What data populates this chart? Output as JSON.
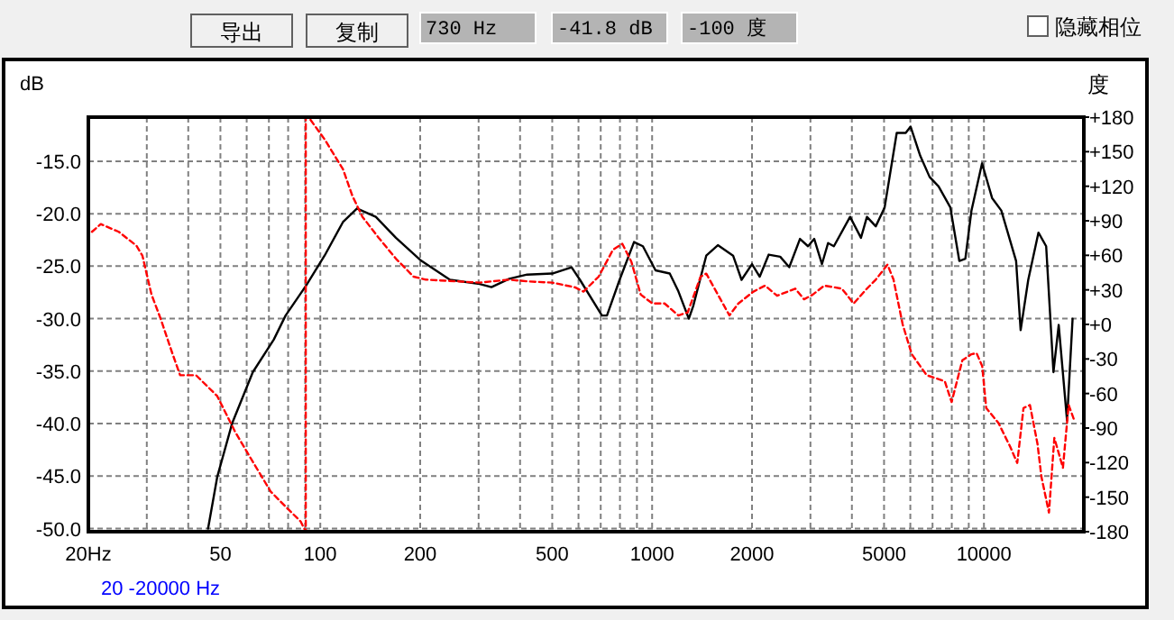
{
  "chart_data": {
    "type": "line",
    "ylabel": "dB",
    "y2label": "度",
    "annotations": [
      "导出",
      "复制",
      "730 Hz",
      "-41.8 dB",
      "-100 度",
      "隐藏相位",
      "20 -20000 Hz"
    ],
    "log": "x",
    "grid": true,
    "xlim": [
      20,
      20000
    ],
    "xticks": [
      {
        "value": 20,
        "label": "20Hz"
      },
      {
        "value": 30,
        "label": null
      },
      {
        "value": 40,
        "label": null
      },
      50,
      {
        "value": 60,
        "label": null
      },
      {
        "value": 70,
        "label": null
      },
      {
        "value": 80,
        "label": null
      },
      {
        "value": 90,
        "label": null
      },
      100,
      200,
      {
        "value": 300,
        "label": null
      },
      {
        "value": 400,
        "label": null
      },
      500,
      {
        "value": 600,
        "label": null
      },
      {
        "value": 700,
        "label": null
      },
      {
        "value": 800,
        "label": null
      },
      {
        "value": 900,
        "label": null
      },
      1000,
      2000,
      {
        "value": 3000,
        "label": null
      },
      {
        "value": 4000,
        "label": null
      },
      5000,
      {
        "value": 6000,
        "label": null
      },
      {
        "value": 7000,
        "label": null
      },
      {
        "value": 8000,
        "label": null
      },
      {
        "value": 9000,
        "label": null
      },
      10000
    ],
    "ylim": [
      -50.3,
      -10.8
    ],
    "yticks": [
      {
        "value": -15,
        "label": "-15.0"
      },
      {
        "value": -20,
        "label": "-20.0"
      },
      {
        "value": -25,
        "label": "-25.0"
      },
      {
        "value": -30,
        "label": "-30.0"
      },
      {
        "value": -35,
        "label": "-35.0"
      },
      {
        "value": -40,
        "label": "-40.0"
      },
      {
        "value": -45,
        "label": "-45.0"
      },
      {
        "value": -50,
        "label": "-50.0"
      }
    ],
    "y2lim": [
      -180,
      180
    ],
    "y2ticks": [
      {
        "value": 180,
        "label": "+180"
      },
      {
        "value": 150,
        "label": "+150"
      },
      {
        "value": 120,
        "label": "+120"
      },
      {
        "value": 90,
        "label": "+90"
      },
      {
        "value": 60,
        "label": "+60"
      },
      {
        "value": 30,
        "label": "+30"
      },
      {
        "value": 0,
        "label": "+0"
      },
      -30,
      -60,
      -90,
      -120,
      -150,
      -180
    ],
    "series": [
      {
        "color": "#000000",
        "line_style": "solid",
        "x": [
          45.9,
          48.9,
          54.2,
          62.6,
          72.4,
          78.6,
          90.8,
          103,
          117,
          129,
          147,
          169,
          200,
          246,
          302,
          328,
          371,
          420,
          500,
          572,
          606,
          706,
          731,
          798,
          882,
          938,
          1024,
          1130,
          1200,
          1290,
          1330,
          1456,
          1578,
          1754,
          1860,
          2000,
          2110,
          2246,
          2432,
          2590,
          2790,
          2950,
          3080,
          3250,
          3390,
          3530,
          3950,
          4260,
          4440,
          4720,
          5020,
          5460,
          5810,
          6010,
          6430,
          6860,
          7300,
          7920,
          8430,
          8790,
          9170,
          9870,
          10580,
          11280,
          12500,
          12900,
          13600,
          14600,
          15400,
          16200,
          16800,
          17800,
          18500
        ],
        "values": [
          -50,
          -45.1,
          -40,
          -35.1,
          -32,
          -29.7,
          -26.8,
          -24,
          -20.8,
          -19.5,
          -20.3,
          -22.3,
          -24.4,
          -26.3,
          -26.7,
          -27,
          -26.2,
          -25.8,
          -25.7,
          -25.1,
          -26.3,
          -29.7,
          -29.7,
          -26.3,
          -22.7,
          -23.1,
          -25.4,
          -25.7,
          -27.4,
          -30,
          -28.8,
          -24,
          -23,
          -24,
          -26.3,
          -24.8,
          -26,
          -23.9,
          -24.1,
          -25.1,
          -22.4,
          -23.1,
          -22.4,
          -24.8,
          -22.8,
          -23.1,
          -20.3,
          -22.3,
          -20.3,
          -21.2,
          -19.4,
          -12.3,
          -12.3,
          -11.7,
          -14.5,
          -16.5,
          -17.4,
          -19.4,
          -24.5,
          -24.3,
          -19.7,
          -15.2,
          -18.5,
          -19.7,
          -24.5,
          -31.1,
          -26.3,
          -21.8,
          -23.1,
          -35.1,
          -30.6,
          -39.7,
          -30
        ]
      },
      {
        "color": "#ff0000",
        "line_style": "dashed",
        "axis": "y2",
        "x": [
          20.5,
          21.8,
          24.7,
          27.9,
          29.1,
          31,
          33,
          35.9,
          37.8,
          42.2,
          48.9,
          55.4,
          62.6,
          70.9,
          80.2,
          87.3,
          90.4,
          90.4,
          92.7,
          103,
          117,
          125,
          134,
          150,
          169,
          191,
          208,
          302,
          371,
          420,
          500,
          586,
          621,
          690,
          762,
          813,
          866,
          924,
          1002,
          1090,
          1200,
          1280,
          1400,
          1456,
          1578,
          1710,
          1820,
          2020,
          2190,
          2380,
          2700,
          2870,
          3050,
          3300,
          3730,
          4050,
          4440,
          4720,
          5120,
          5340,
          5690,
          6060,
          6720,
          7620,
          7990,
          8610,
          9170,
          9500,
          9880,
          10160,
          11060,
          12000,
          12600,
          13160,
          13760,
          14500,
          14900,
          15700,
          16300,
          17300,
          18000,
          18700
        ],
        "values": [
          80.4,
          87.1,
          80.4,
          68.5,
          59.7,
          25.9,
          5.2,
          -25.9,
          -44.1,
          -44.1,
          -62.2,
          -93.4,
          -119.3,
          -145.2,
          -160.8,
          -171.2,
          -180,
          180,
          179,
          160.8,
          134.9,
          111.5,
          93.4,
          75.2,
          57.1,
          41.5,
          38.9,
          36.3,
          38.9,
          37.4,
          36.3,
          32.2,
          28.5,
          41.5,
          64.8,
          70,
          54.4,
          25.9,
          18.2,
          18.2,
          7.8,
          10.4,
          41.5,
          44.1,
          25.9,
          7.8,
          18.2,
          28.5,
          33.7,
          24.9,
          31.1,
          21.8,
          25.9,
          33.7,
          31.1,
          18.2,
          31.1,
          38.9,
          51.9,
          38.9,
          0,
          -25.9,
          -44.1,
          -49.3,
          -67.4,
          -31.1,
          -25.9,
          -24.9,
          -36.3,
          -72.6,
          -85.6,
          -106.3,
          -120.3,
          -72.6,
          -70,
          -103.7,
          -132.3,
          -163.4,
          -98.6,
          -124.5,
          -70,
          -83
        ]
      }
    ]
  }
}
